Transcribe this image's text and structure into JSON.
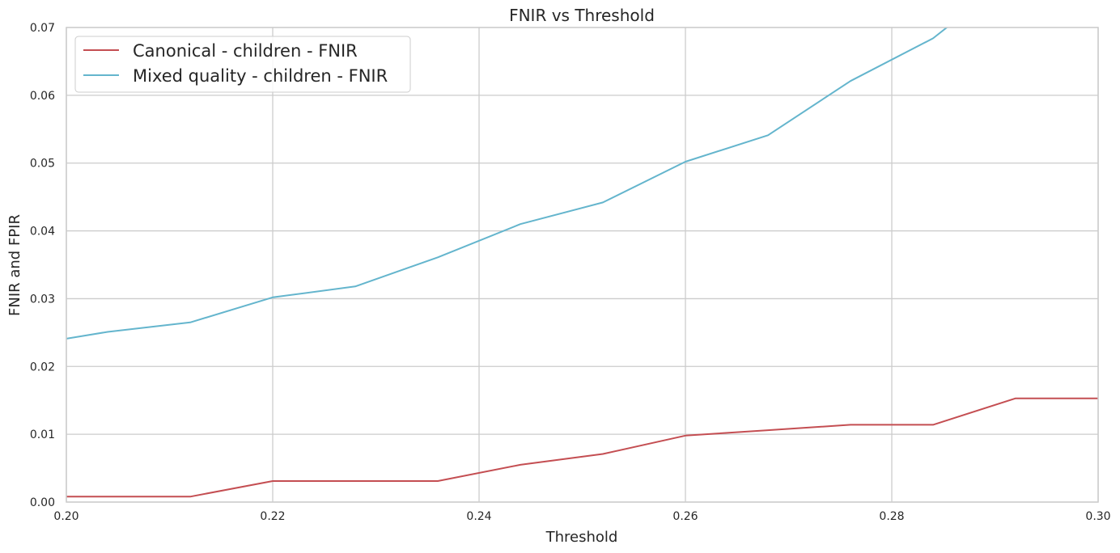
{
  "chart_data": {
    "type": "line",
    "title": "FNIR vs Threshold",
    "xlabel": "Threshold",
    "ylabel": "FNIR and FPIR",
    "xlim": [
      0.2,
      0.3
    ],
    "ylim": [
      0.0,
      0.07
    ],
    "xticks": [
      0.2,
      0.22,
      0.24,
      0.26,
      0.28,
      0.3
    ],
    "xtick_labels": [
      "0.20",
      "0.22",
      "0.24",
      "0.26",
      "0.28",
      "0.30"
    ],
    "yticks": [
      0.0,
      0.01,
      0.02,
      0.03,
      0.04,
      0.05,
      0.06,
      0.07
    ],
    "ytick_labels": [
      "0.00",
      "0.01",
      "0.02",
      "0.03",
      "0.04",
      "0.05",
      "0.06",
      "0.07"
    ],
    "grid": true,
    "legend_position": "top-left",
    "series": [
      {
        "name": "Canonical - children - FNIR",
        "color": "#c44e52",
        "x": [
          0.2,
          0.204,
          0.212,
          0.22,
          0.228,
          0.236,
          0.244,
          0.252,
          0.26,
          0.268,
          0.276,
          0.284,
          0.292,
          0.3
        ],
        "y": [
          0.0008,
          0.0008,
          0.0008,
          0.0031,
          0.0031,
          0.0031,
          0.0055,
          0.0071,
          0.0098,
          0.0106,
          0.0114,
          0.0114,
          0.0153,
          0.0153
        ]
      },
      {
        "name": "Mixed quality - children - FNIR",
        "color": "#64b5cd",
        "x": [
          0.2,
          0.204,
          0.212,
          0.22,
          0.228,
          0.236,
          0.244,
          0.252,
          0.26,
          0.268,
          0.276,
          0.284,
          0.292
        ],
        "y": [
          0.0241,
          0.0251,
          0.0265,
          0.0302,
          0.0318,
          0.0361,
          0.041,
          0.0442,
          0.0502,
          0.0541,
          0.0621,
          0.0684,
          0.078
        ]
      }
    ]
  }
}
